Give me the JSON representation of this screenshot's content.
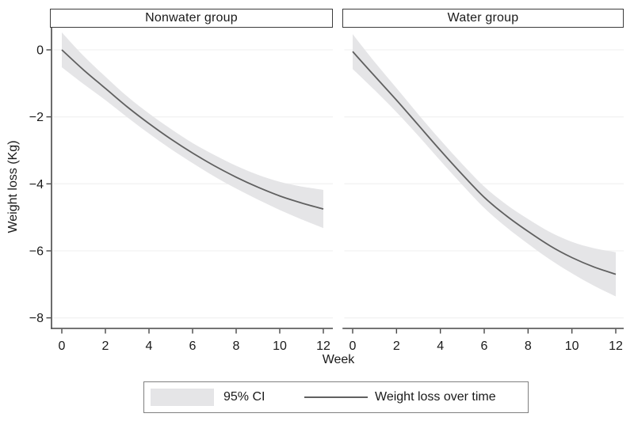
{
  "chart_data": {
    "type": "line",
    "layout": "two-panel faceted plot (shared y axis, Stata style)",
    "xlabel": "Week",
    "ylabel": "Weight loss (Kg)",
    "x": [
      0,
      1,
      2,
      3,
      4,
      5,
      6,
      7,
      8,
      9,
      10,
      11,
      12
    ],
    "x_tick_values": [
      0,
      2,
      4,
      6,
      8,
      10,
      12
    ],
    "x_tick_labels": [
      "0",
      "2",
      "4",
      "6",
      "8",
      "10",
      "12"
    ],
    "y_tick_values": [
      0,
      -2,
      -4,
      -6,
      -8
    ],
    "y_tick_labels": [
      "0",
      "−2",
      "−4",
      "−6",
      "−8"
    ],
    "xlim": [
      -0.5,
      12.45
    ],
    "ylim": [
      -8.35,
      0.66
    ],
    "grid": "faint horizontal gridlines at y ticks",
    "panels": [
      {
        "title": "Nonwater group",
        "series_name": "Weight loss over time",
        "y": [
          0,
          -0.6,
          -1.15,
          -1.7,
          -2.2,
          -2.66,
          -3.08,
          -3.46,
          -3.8,
          -4.1,
          -4.36,
          -4.57,
          -4.75
        ],
        "ci_half_width": [
          0.52,
          0.42,
          0.35,
          0.31,
          0.3,
          0.3,
          0.3,
          0.32,
          0.34,
          0.37,
          0.42,
          0.49,
          0.57
        ]
      },
      {
        "title": "Water group",
        "series_name": "Weight loss over time",
        "y": [
          -0.05,
          -0.78,
          -1.5,
          -2.25,
          -3.0,
          -3.72,
          -4.4,
          -4.95,
          -5.42,
          -5.85,
          -6.2,
          -6.48,
          -6.7
        ],
        "ci_half_width": [
          0.52,
          0.42,
          0.36,
          0.32,
          0.31,
          0.31,
          0.32,
          0.34,
          0.37,
          0.41,
          0.47,
          0.56,
          0.66
        ]
      }
    ],
    "legend": [
      {
        "type": "area",
        "label": "95% CI"
      },
      {
        "type": "line",
        "label": "Weight loss over time"
      }
    ],
    "legend_position": "bottom",
    "colors": {
      "line": "#606060",
      "ci_band": "#e5e5e7",
      "axis": "#474747",
      "text": "#1a1a1a",
      "gridline": "#f2f2f2",
      "legend_border": "#808080",
      "panel_border": "#3c3c3c",
      "background": "#ffffff"
    }
  }
}
